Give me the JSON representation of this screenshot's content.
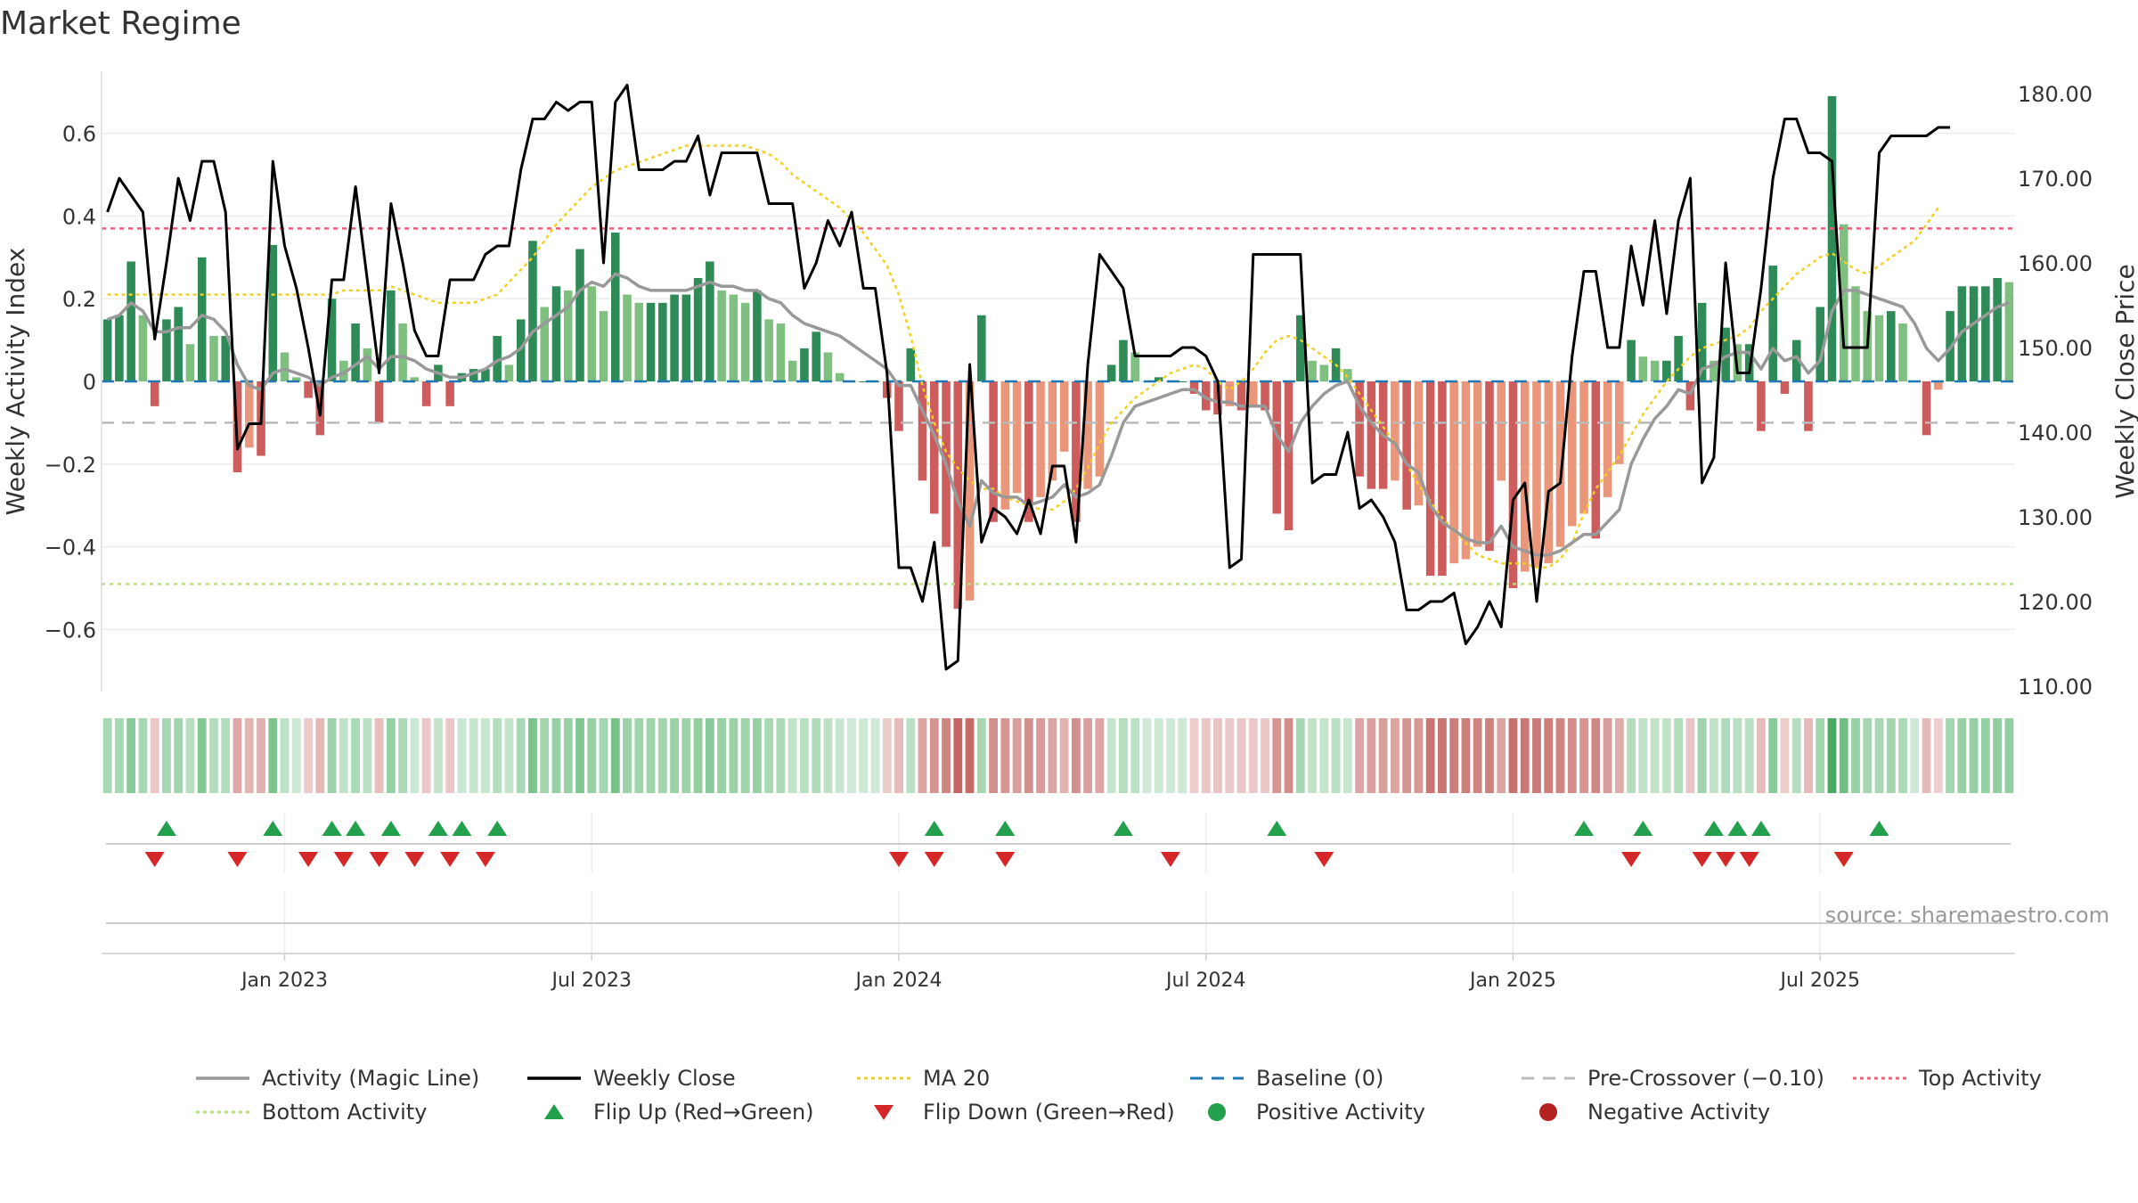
{
  "chart_data": {
    "type": "bar",
    "title": "Market Regime",
    "ylabel_left": "Weekly Activity Index",
    "ylabel_right": "Weekly Close Price",
    "ylim_left": [
      -0.75,
      0.75
    ],
    "ylim_right": [
      110,
      180
    ],
    "left_ticks": [
      {
        "v": 0.6,
        "t": "0.6"
      },
      {
        "v": 0.4,
        "t": "0.4"
      },
      {
        "v": 0.2,
        "t": "0.2"
      },
      {
        "v": 0,
        "t": "0"
      },
      {
        "v": -0.2,
        "t": "−0.2"
      },
      {
        "v": -0.4,
        "t": "−0.4"
      },
      {
        "v": -0.6,
        "t": "−0.6"
      }
    ],
    "right_ticks": [
      "180.00",
      "170.00",
      "160.00",
      "150.00",
      "140.00",
      "130.00",
      "120.00",
      "110.00"
    ],
    "x_ticks": [
      "Jan 2023",
      "Jul 2023",
      "Jan 2024",
      "Jul 2024",
      "Jan 2025",
      "Jul 2025"
    ],
    "x_tick_weeks": [
      15,
      41,
      67,
      93,
      119,
      145
    ],
    "top_activity": 0.37,
    "bottom_activity": -0.49,
    "pre_crossover": -0.1,
    "baseline": 0,
    "source": "source: sharemaestro.com",
    "activity": [
      0.15,
      0.16,
      0.29,
      0.16,
      -0.06,
      0.15,
      0.18,
      0.09,
      0.3,
      0.11,
      0.11,
      -0.22,
      -0.16,
      -0.18,
      0.33,
      0.07,
      0.01,
      -0.04,
      -0.13,
      0.2,
      0.05,
      0.14,
      0.08,
      -0.1,
      0.22,
      0.14,
      0.01,
      -0.06,
      0.04,
      -0.06,
      0.02,
      0.03,
      0.03,
      0.11,
      0.04,
      0.15,
      0.34,
      0.18,
      0.23,
      0.22,
      0.32,
      0.23,
      0.17,
      0.36,
      0.21,
      0.19,
      0.19,
      0.19,
      0.21,
      0.21,
      0.25,
      0.29,
      0.22,
      0.21,
      0.19,
      0.22,
      0.15,
      0.14,
      0.05,
      0.08,
      0.12,
      0.07,
      0.02,
      0.0,
      0.0,
      0.0,
      -0.04,
      -0.12,
      0.08,
      -0.24,
      -0.32,
      -0.4,
      -0.55,
      -0.53,
      0.16,
      -0.34,
      -0.31,
      -0.27,
      -0.34,
      -0.28,
      -0.24,
      -0.17,
      -0.34,
      -0.26,
      -0.23,
      0.04,
      0.1,
      0.07,
      0.0,
      0.01,
      0.0,
      0.0,
      -0.03,
      -0.07,
      -0.08,
      -0.06,
      -0.07,
      -0.06,
      -0.07,
      -0.32,
      -0.36,
      0.16,
      0.05,
      0.04,
      0.08,
      0.03,
      -0.23,
      -0.26,
      -0.26,
      -0.24,
      -0.31,
      -0.3,
      -0.47,
      -0.47,
      -0.44,
      -0.43,
      -0.4,
      -0.41,
      -0.24,
      -0.5,
      -0.46,
      -0.45,
      -0.44,
      -0.4,
      -0.35,
      -0.32,
      -0.38,
      -0.28,
      -0.2,
      0.1,
      0.06,
      0.05,
      0.05,
      0.11,
      -0.07,
      0.19,
      0.05,
      0.13,
      0.09,
      0.09,
      -0.12,
      0.28,
      -0.03,
      0.1,
      -0.12,
      0.18,
      0.69,
      0.38,
      0.23,
      0.17,
      0.16,
      0.17,
      0.14,
      0.0,
      -0.13,
      -0.02,
      0.17,
      0.23,
      0.23,
      0.23,
      0.25,
      0.24
    ],
    "close": [
      166,
      170,
      168,
      166,
      151,
      160,
      170,
      165,
      172,
      172,
      166,
      138,
      141,
      141,
      172,
      162,
      157,
      150,
      142,
      158,
      158,
      169,
      158,
      147,
      167,
      160,
      152,
      149,
      149,
      158,
      158,
      158,
      161,
      162,
      162,
      171,
      177,
      177,
      179,
      178,
      179,
      179,
      160,
      179,
      181,
      171,
      171,
      171,
      172,
      172,
      175,
      168,
      173,
      173,
      173,
      173,
      167,
      167,
      167,
      157,
      160,
      165,
      162,
      166,
      157,
      157,
      147,
      124,
      124,
      120,
      127,
      112,
      113,
      148,
      127,
      131,
      130,
      128,
      132,
      128,
      136,
      136,
      127,
      148,
      161,
      159,
      157,
      149,
      149,
      149,
      149,
      150,
      150,
      149,
      146,
      124,
      125,
      161,
      161,
      161,
      161,
      161,
      134,
      135,
      135,
      140,
      131,
      132,
      130,
      127,
      119,
      119,
      120,
      120,
      121,
      115,
      117,
      120,
      117,
      132,
      134,
      120,
      133,
      134,
      149,
      159,
      159,
      150,
      150,
      162,
      155,
      165,
      154,
      165,
      170,
      134,
      137,
      160,
      147,
      147,
      157,
      170,
      177,
      177,
      173,
      173,
      172,
      150,
      150,
      150,
      173,
      175,
      175,
      175,
      175,
      176,
      176
    ],
    "magic": [
      0.15,
      0.16,
      0.19,
      0.17,
      0.12,
      0.12,
      0.13,
      0.13,
      0.16,
      0.15,
      0.12,
      0.04,
      -0.01,
      -0.02,
      0.02,
      0.03,
      0.02,
      0.01,
      -0.01,
      0.01,
      0.02,
      0.04,
      0.06,
      0.03,
      0.06,
      0.06,
      0.05,
      0.03,
      0.02,
      0.01,
      0.01,
      0.02,
      0.03,
      0.05,
      0.06,
      0.08,
      0.12,
      0.14,
      0.16,
      0.18,
      0.22,
      0.24,
      0.23,
      0.26,
      0.25,
      0.23,
      0.22,
      0.22,
      0.22,
      0.22,
      0.23,
      0.24,
      0.23,
      0.23,
      0.22,
      0.22,
      0.2,
      0.19,
      0.16,
      0.14,
      0.13,
      0.12,
      0.11,
      0.09,
      0.07,
      0.05,
      0.03,
      -0.01,
      -0.01,
      -0.07,
      -0.13,
      -0.2,
      -0.29,
      -0.35,
      -0.24,
      -0.27,
      -0.28,
      -0.28,
      -0.3,
      -0.29,
      -0.28,
      -0.25,
      -0.28,
      -0.27,
      -0.25,
      -0.18,
      -0.1,
      -0.06,
      -0.05,
      -0.04,
      -0.03,
      -0.02,
      -0.02,
      -0.04,
      -0.05,
      -0.05,
      -0.06,
      -0.06,
      -0.06,
      -0.13,
      -0.17,
      -0.1,
      -0.06,
      -0.03,
      -0.01,
      -0.0,
      -0.06,
      -0.1,
      -0.13,
      -0.15,
      -0.2,
      -0.22,
      -0.3,
      -0.34,
      -0.36,
      -0.38,
      -0.39,
      -0.39,
      -0.35,
      -0.4,
      -0.41,
      -0.42,
      -0.42,
      -0.41,
      -0.39,
      -0.37,
      -0.37,
      -0.34,
      -0.31,
      -0.2,
      -0.14,
      -0.09,
      -0.06,
      -0.02,
      -0.03,
      0.03,
      0.04,
      0.06,
      0.07,
      0.07,
      0.03,
      0.08,
      0.05,
      0.06,
      0.02,
      0.05,
      0.17,
      0.22,
      0.22,
      0.21,
      0.2,
      0.19,
      0.18,
      0.14,
      0.08,
      0.05,
      0.08,
      0.12,
      0.14,
      0.16,
      0.18,
      0.19
    ],
    "ma20": [
      0.21,
      0.21,
      0.21,
      0.21,
      0.21,
      0.21,
      0.21,
      0.21,
      0.21,
      0.21,
      0.21,
      0.21,
      0.21,
      0.21,
      0.21,
      0.21,
      0.21,
      0.21,
      0.21,
      0.21,
      0.22,
      0.22,
      0.22,
      0.22,
      0.23,
      0.22,
      0.21,
      0.2,
      0.19,
      0.19,
      0.19,
      0.19,
      0.2,
      0.21,
      0.24,
      0.27,
      0.3,
      0.34,
      0.38,
      0.41,
      0.44,
      0.47,
      0.49,
      0.51,
      0.52,
      0.53,
      0.54,
      0.55,
      0.56,
      0.57,
      0.57,
      0.57,
      0.57,
      0.57,
      0.57,
      0.56,
      0.55,
      0.53,
      0.5,
      0.48,
      0.46,
      0.44,
      0.42,
      0.39,
      0.36,
      0.32,
      0.28,
      0.21,
      0.11,
      -0.01,
      -0.1,
      -0.17,
      -0.21,
      -0.24,
      -0.26,
      -0.26,
      -0.28,
      -0.29,
      -0.3,
      -0.31,
      -0.31,
      -0.29,
      -0.26,
      -0.21,
      -0.15,
      -0.1,
      -0.07,
      -0.04,
      -0.02,
      0.0,
      0.02,
      0.03,
      0.04,
      0.03,
      0.0,
      -0.02,
      0.0,
      0.03,
      0.07,
      0.1,
      0.11,
      0.1,
      0.08,
      0.06,
      0.04,
      0.01,
      -0.03,
      -0.07,
      -0.11,
      -0.15,
      -0.2,
      -0.25,
      -0.29,
      -0.33,
      -0.36,
      -0.39,
      -0.42,
      -0.43,
      -0.44,
      -0.44,
      -0.44,
      -0.45,
      -0.45,
      -0.43,
      -0.39,
      -0.32,
      -0.26,
      -0.22,
      -0.18,
      -0.13,
      -0.08,
      -0.04,
      0.0,
      0.03,
      0.06,
      0.08,
      0.09,
      0.1,
      0.11,
      0.13,
      0.17,
      0.2,
      0.23,
      0.26,
      0.28,
      0.3,
      0.31,
      0.29,
      0.27,
      0.26,
      0.28,
      0.3,
      0.32,
      0.34,
      0.38,
      0.42
    ],
    "flip_up": [
      5,
      14,
      19,
      21,
      24,
      28,
      30,
      33,
      70,
      76,
      86,
      99,
      125,
      130,
      136,
      138,
      140,
      150
    ],
    "flip_down": [
      4,
      11,
      17,
      20,
      23,
      26,
      29,
      32,
      67,
      70,
      76,
      90,
      103,
      129,
      135,
      137,
      139,
      147
    ],
    "bar_colors": {
      "dark_green": "#2e8b57",
      "light_green": "#7fbf7f",
      "dark_red": "#cd5c5c",
      "light_red": "#e9967a"
    },
    "line_colors": {
      "magic": "#999999",
      "close": "#000000",
      "ma20": "#f2d024",
      "baseline": "#1f77b4",
      "pre_crossover": "#bbbbbb",
      "top": "#e8607a",
      "bottom": "#b9e07a"
    },
    "legend": [
      {
        "label": "Activity (Magic Line)",
        "icon": "solid-gray-line",
        "color": "#999999"
      },
      {
        "label": "Weekly Close",
        "icon": "solid-black-line",
        "color": "#000000"
      },
      {
        "label": "MA 20",
        "icon": "dotted-yellow-line",
        "color": "#f2d024"
      },
      {
        "label": "Baseline (0)",
        "icon": "dashed-blue-line",
        "color": "#1f77b4"
      },
      {
        "label": "Pre-Crossover (−0.10)",
        "icon": "dashed-gray-line",
        "color": "#bbbbbb"
      },
      {
        "label": "Top Activity",
        "icon": "dotted-pink-line",
        "color": "#e8607a"
      },
      {
        "label": "Bottom Activity",
        "icon": "dotted-green-line",
        "color": "#b9e07a"
      },
      {
        "label": "Flip Up (Red→Green)",
        "icon": "triangle-up-icon",
        "color": "#22a04b"
      },
      {
        "label": "Flip Down (Green→Red)",
        "icon": "triangle-down-icon",
        "color": "#d62728"
      },
      {
        "label": "Positive Activity",
        "icon": "green-dot-icon",
        "color": "#22a04b"
      },
      {
        "label": "Negative Activity",
        "icon": "red-dot-icon",
        "color": "#b22222"
      }
    ]
  }
}
